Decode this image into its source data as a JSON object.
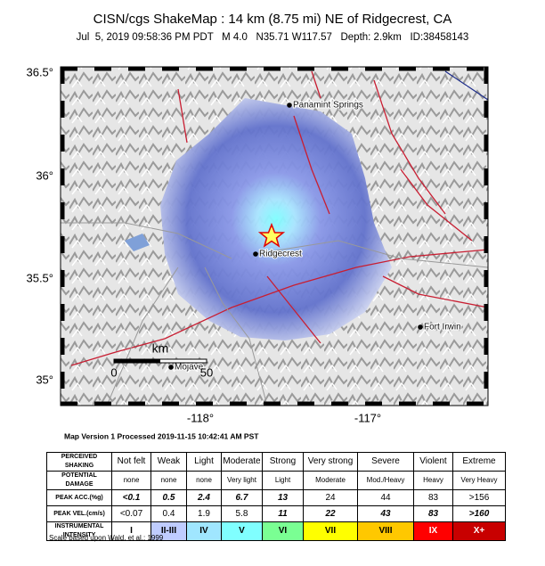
{
  "header": {
    "title": "CISN/cgs ShakeMap : 14 km (8.75 mi) NE of Ridgecrest, CA",
    "subtitle": "Jul  5, 2019 09:58:36 PM PDT   M 4.0   N35.71 W117.57   Depth: 2.9km   ID:38458143"
  },
  "map": {
    "lat_labels": [
      "36.5°",
      "36°",
      "35.5°",
      "35°"
    ],
    "lon_labels": [
      "-118°",
      "-117°"
    ],
    "places": [
      "Panamint Springs",
      "Ridgecrest",
      "Fort Irwin",
      "Mojave"
    ],
    "scale": {
      "unit": "km",
      "labels": [
        "0",
        "50"
      ]
    }
  },
  "version": "Map Version 1 Processed 2019-11-15 10:42:41 AM PST",
  "legend": {
    "rows": [
      {
        "label": "PERCEIVED SHAKING",
        "cells": [
          "Not felt",
          "Weak",
          "Light",
          "Moderate",
          "Strong",
          "Very strong",
          "Severe",
          "Violent",
          "Extreme"
        ]
      },
      {
        "label": "POTENTIAL DAMAGE",
        "cells": [
          "none",
          "none",
          "none",
          "Very light",
          "Light",
          "Moderate",
          "Mod./Heavy",
          "Heavy",
          "Very Heavy"
        ]
      },
      {
        "label": "PEAK ACC.(%g)",
        "cells": [
          "<0.1",
          "0.5",
          "2.4",
          "6.7",
          "13",
          "24",
          "44",
          "83",
          ">156"
        ]
      },
      {
        "label": "PEAK VEL.(cm/s)",
        "cells": [
          "<0.07",
          "0.4",
          "1.9",
          "5.8",
          "11",
          "22",
          "43",
          "83",
          ">160"
        ]
      },
      {
        "label": "INSTRUMENTAL INTENSITY",
        "cells": [
          "I",
          "II-III",
          "IV",
          "V",
          "VI",
          "VII",
          "VIII",
          "IX",
          "X+"
        ]
      }
    ]
  },
  "footnote": "Scale based upon Wald, et al.; 1999"
}
